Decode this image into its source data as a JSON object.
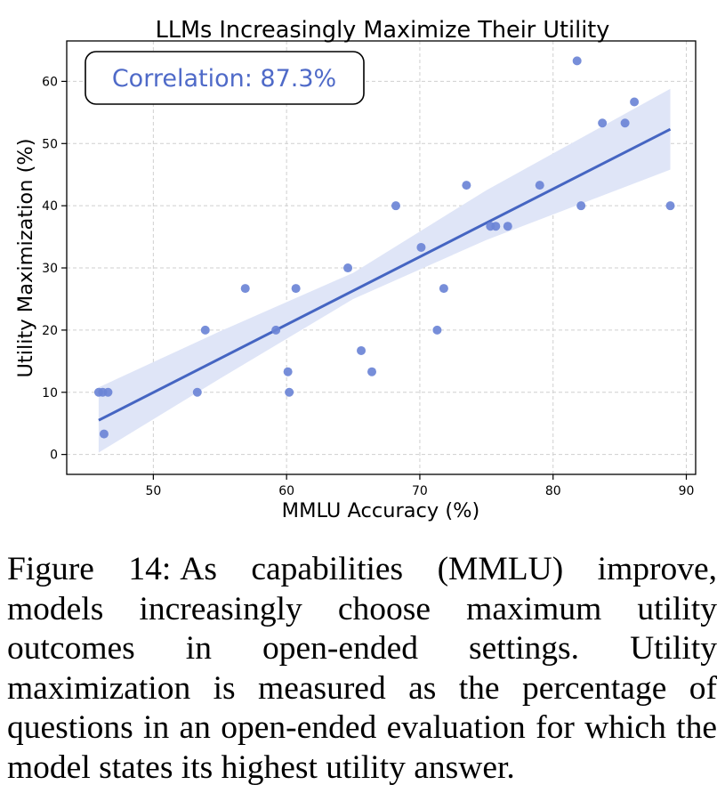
{
  "chart_data": {
    "type": "scatter",
    "title": "LLMs Increasingly Maximize Their Utility",
    "xlabel": "MMLU Accuracy (%)",
    "ylabel": "Utility Maximization (%)",
    "xlim": [
      43.5,
      90.7
    ],
    "ylim": [
      -3.2,
      66.5
    ],
    "xticks": [
      50,
      60,
      70,
      80,
      90
    ],
    "yticks": [
      0,
      10,
      20,
      30,
      40,
      50,
      60
    ],
    "grid": true,
    "annotation": "Correlation: 87.3%",
    "colors": {
      "points": "#6b84d6",
      "line": "#4565c2",
      "band": "#dfe5f7"
    },
    "points": [
      {
        "x": 45.9,
        "y": 10
      },
      {
        "x": 46.2,
        "y": 10
      },
      {
        "x": 46.6,
        "y": 10
      },
      {
        "x": 46.3,
        "y": 3.3
      },
      {
        "x": 53.3,
        "y": 10
      },
      {
        "x": 53.9,
        "y": 20
      },
      {
        "x": 56.9,
        "y": 26.7
      },
      {
        "x": 59.2,
        "y": 20
      },
      {
        "x": 60.1,
        "y": 13.3
      },
      {
        "x": 60.2,
        "y": 10
      },
      {
        "x": 60.7,
        "y": 26.7
      },
      {
        "x": 64.6,
        "y": 30
      },
      {
        "x": 65.6,
        "y": 16.7
      },
      {
        "x": 66.4,
        "y": 13.3
      },
      {
        "x": 68.2,
        "y": 40
      },
      {
        "x": 70.1,
        "y": 33.3
      },
      {
        "x": 71.3,
        "y": 20
      },
      {
        "x": 71.8,
        "y": 26.7
      },
      {
        "x": 73.5,
        "y": 43.3
      },
      {
        "x": 75.3,
        "y": 36.7
      },
      {
        "x": 75.7,
        "y": 36.7
      },
      {
        "x": 76.6,
        "y": 36.7
      },
      {
        "x": 79.0,
        "y": 43.3
      },
      {
        "x": 81.8,
        "y": 63.3
      },
      {
        "x": 82.1,
        "y": 40
      },
      {
        "x": 83.7,
        "y": 53.3
      },
      {
        "x": 85.4,
        "y": 53.3
      },
      {
        "x": 86.1,
        "y": 56.7
      },
      {
        "x": 88.8,
        "y": 40
      }
    ],
    "regression": {
      "x": [
        45.9,
        88.8
      ],
      "y": [
        5.5,
        52.3
      ]
    },
    "confidence_band": {
      "x": [
        45.9,
        55,
        65,
        75,
        88.8
      ],
      "lower": [
        0.3,
        12.2,
        25.0,
        34.5,
        45.8
      ],
      "upper": [
        10.8,
        19.8,
        29.2,
        42.5,
        58.8
      ]
    }
  },
  "caption": {
    "label": "Figure 14:",
    "text": "As capabilities (MMLU) improve, models increasingly choose maximum utility outcomes in open-ended settings. Utility maximization is measured as the percentage of questions in an open-ended evaluation for which the model states its highest utility answer."
  }
}
